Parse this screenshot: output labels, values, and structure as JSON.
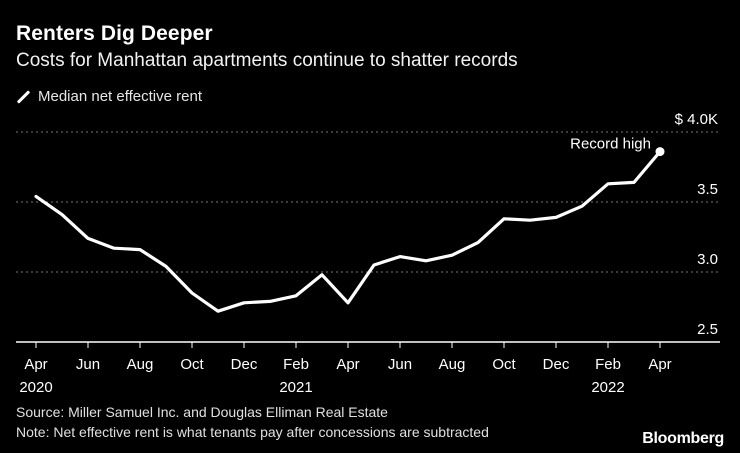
{
  "chart_data": {
    "type": "line",
    "title": "Renters Dig Deeper",
    "subtitle": "Costs for Manhattan apartments continue to shatter records",
    "series": [
      {
        "name": "Median net effective rent",
        "values": [
          3.54,
          3.41,
          3.24,
          3.17,
          3.16,
          3.04,
          2.85,
          2.72,
          2.78,
          2.79,
          2.83,
          2.98,
          2.78,
          3.05,
          3.11,
          3.08,
          3.12,
          3.21,
          3.38,
          3.37,
          3.39,
          3.47,
          3.63,
          3.64,
          3.86
        ]
      }
    ],
    "x_labels": [
      {
        "month": "Apr",
        "year": "2020"
      },
      {
        "month": "Jun",
        "year": ""
      },
      {
        "month": "Aug",
        "year": ""
      },
      {
        "month": "Oct",
        "year": ""
      },
      {
        "month": "Dec",
        "year": ""
      },
      {
        "month": "Feb",
        "year": "2021"
      },
      {
        "month": "Apr",
        "year": ""
      },
      {
        "month": "Jun",
        "year": ""
      },
      {
        "month": "Aug",
        "year": ""
      },
      {
        "month": "Oct",
        "year": ""
      },
      {
        "month": "Dec",
        "year": ""
      },
      {
        "month": "Feb",
        "year": "2022"
      },
      {
        "month": "Apr",
        "year": ""
      }
    ],
    "y_ticks": [
      {
        "value": 2.5,
        "label": "2.5"
      },
      {
        "value": 3.0,
        "label": "3.0"
      },
      {
        "value": 3.5,
        "label": "3.5"
      },
      {
        "value": 4.0,
        "label": "$ 4.0K"
      }
    ],
    "ylim": [
      2.5,
      4.0
    ],
    "annotation": {
      "text": "Record high",
      "point_index": 24
    },
    "colors": {
      "line": "#ffffff",
      "grid": "#777777",
      "axis": "#ffffff"
    }
  },
  "footer": {
    "source": "Source: Miller Samuel Inc. and Douglas Elliman Real Estate",
    "note": "Note: Net effective rent is what tenants pay after concessions are subtracted",
    "brand": "Bloomberg"
  }
}
